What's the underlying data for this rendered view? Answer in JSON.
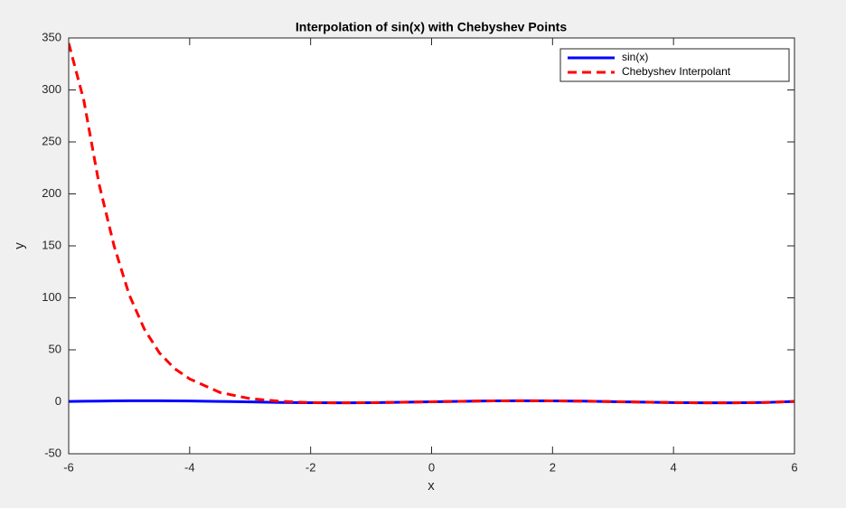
{
  "chart_data": {
    "type": "line",
    "title": "Interpolation of sin(x) with Chebyshev Points",
    "xlabel": "x",
    "ylabel": "y",
    "x": [
      -6,
      -5.75,
      -5.5,
      -5.25,
      -5,
      -4.75,
      -4.5,
      -4.25,
      -4,
      -3.5,
      -3,
      -2.5,
      -2,
      -1.5,
      -1,
      -0.5,
      0,
      0.5,
      1,
      1.5,
      2,
      2.5,
      3,
      3.5,
      4,
      4.5,
      5,
      5.5,
      6
    ],
    "series": [
      {
        "name": "sin(x)",
        "color": "#0000ff",
        "dash": false,
        "values": [
          0.279,
          0.509,
          0.706,
          0.859,
          0.959,
          0.999,
          0.978,
          0.895,
          0.757,
          0.351,
          -0.141,
          -0.598,
          -0.909,
          -0.997,
          -0.841,
          -0.479,
          0,
          0.479,
          0.841,
          0.997,
          0.909,
          0.598,
          0.141,
          -0.351,
          -0.757,
          -0.978,
          -0.959,
          -0.706,
          0.279
        ]
      },
      {
        "name": "Chebyshev Interpolant",
        "color": "#ff0000",
        "dash": true,
        "values": [
          345,
          290,
          210,
          150,
          103,
          70,
          47,
          32,
          22,
          9,
          3,
          0.5,
          -0.8,
          -1,
          -0.84,
          -0.48,
          0,
          0.48,
          0.84,
          1,
          0.91,
          0.6,
          0.14,
          -0.35,
          -0.76,
          -0.98,
          -0.96,
          -0.7,
          0.28
        ]
      }
    ],
    "xlim": [
      -6,
      6
    ],
    "xticks": [
      -6,
      -4,
      -2,
      0,
      2,
      4,
      6
    ],
    "ylim": [
      -50,
      350
    ],
    "yticks": [
      -50,
      0,
      50,
      100,
      150,
      200,
      250,
      300,
      350
    ],
    "legend": "top-right",
    "grid": false
  }
}
